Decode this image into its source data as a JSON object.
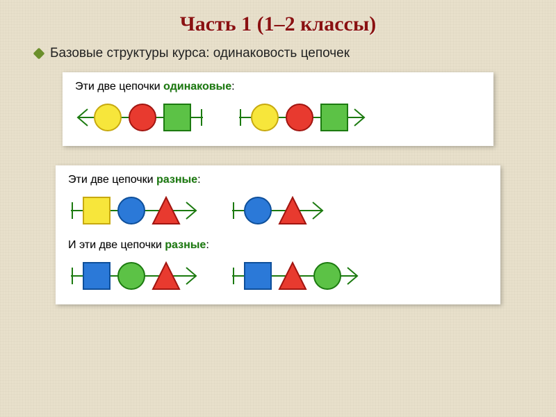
{
  "title": {
    "text": "Часть 1 (1–2 классы)",
    "color": "#8a1111",
    "fontsize_pt": 30
  },
  "bullet": {
    "text": "Базовые структуры курса: одинаковость цепочек",
    "diamond_color": "#6b8f2b",
    "fontsize_pt": 19
  },
  "colors": {
    "green": {
      "fill": "#5cc246",
      "stroke": "#1c7a10"
    },
    "red": {
      "fill": "#e83a2f",
      "stroke": "#a11510"
    },
    "yellow": {
      "fill": "#f7e63b",
      "stroke": "#c7a90f"
    },
    "blue": {
      "fill": "#2b79d8",
      "stroke": "#0e4f9a"
    },
    "arrow": "#1c7a10",
    "stroke_width": 2
  },
  "shape_size": 38,
  "gap": 12,
  "panel1": {
    "label_parts": [
      "Эти  две  цепочки  ",
      "одинаковые",
      ":"
    ],
    "em_color": "#1c7a10",
    "chains": [
      {
        "dir": "left",
        "shapes": [
          {
            "t": "square",
            "c": "green"
          },
          {
            "t": "circle",
            "c": "red"
          },
          {
            "t": "circle",
            "c": "yellow"
          }
        ]
      },
      {
        "dir": "right",
        "shapes": [
          {
            "t": "circle",
            "c": "yellow"
          },
          {
            "t": "circle",
            "c": "red"
          },
          {
            "t": "square",
            "c": "green"
          }
        ]
      }
    ]
  },
  "panel2": {
    "rows": [
      {
        "label_parts": [
          "Эти  две  цепочки  ",
          "разные",
          ":"
        ],
        "em_color": "#1c7a10",
        "chains": [
          {
            "dir": "right",
            "shapes": [
              {
                "t": "square",
                "c": "yellow"
              },
              {
                "t": "circle",
                "c": "blue"
              },
              {
                "t": "triangle",
                "c": "red"
              }
            ]
          },
          {
            "dir": "right",
            "shapes": [
              {
                "t": "circle",
                "c": "blue"
              },
              {
                "t": "triangle",
                "c": "red"
              }
            ]
          }
        ]
      },
      {
        "label_parts": [
          "И  эти  две  цепочки  ",
          "разные",
          ":"
        ],
        "em_color": "#1c7a10",
        "chains": [
          {
            "dir": "right",
            "shapes": [
              {
                "t": "square",
                "c": "blue"
              },
              {
                "t": "circle",
                "c": "green"
              },
              {
                "t": "triangle",
                "c": "red"
              }
            ]
          },
          {
            "dir": "right",
            "shapes": [
              {
                "t": "square",
                "c": "blue"
              },
              {
                "t": "triangle",
                "c": "red"
              },
              {
                "t": "circle",
                "c": "green"
              }
            ]
          }
        ]
      }
    ]
  }
}
